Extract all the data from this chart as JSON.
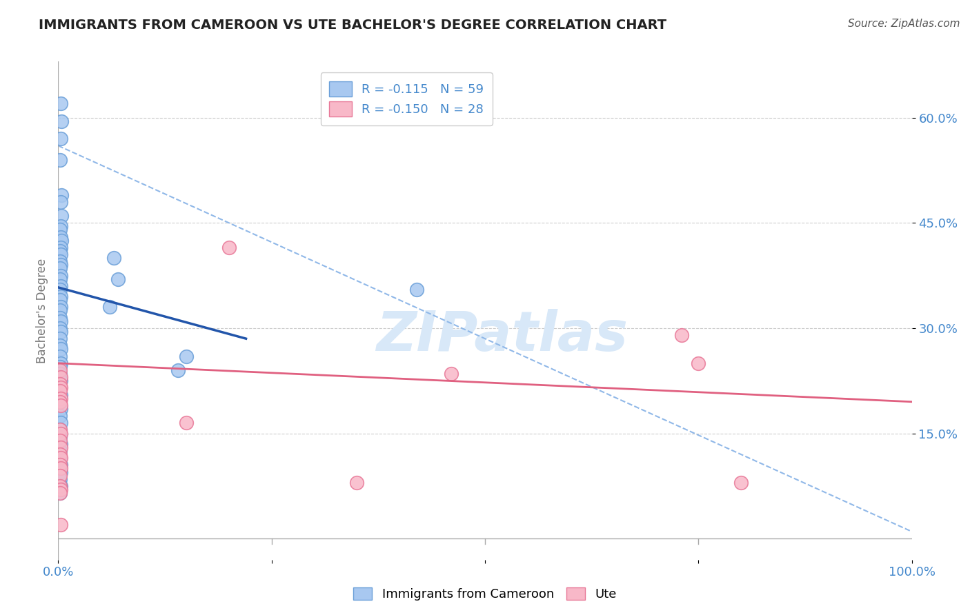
{
  "title": "IMMIGRANTS FROM CAMEROON VS UTE BACHELOR'S DEGREE CORRELATION CHART",
  "source": "Source: ZipAtlas.com",
  "ylabel": "Bachelor's Degree",
  "xlim": [
    0.0,
    1.0
  ],
  "ylim": [
    -0.03,
    0.68
  ],
  "yticks": [
    0.15,
    0.3,
    0.45,
    0.6
  ],
  "ytick_labels": [
    "15.0%",
    "30.0%",
    "45.0%",
    "60.0%"
  ],
  "blue_color": "#A8C8F0",
  "blue_edge_color": "#6A9FD8",
  "pink_color": "#F8B8C8",
  "pink_edge_color": "#E87898",
  "blue_line_color": "#2255AA",
  "pink_line_color": "#E06080",
  "dashed_line_color": "#90B8E8",
  "watermark_color": "#D8E8F8",
  "legend_R_blue": "R = -0.115",
  "legend_N_blue": "N = 59",
  "legend_R_pink": "R = -0.150",
  "legend_N_pink": "N = 28",
  "legend_text_color": "#4488CC",
  "title_color": "#222222",
  "source_color": "#555555",
  "axis_color": "#AAAAAA",
  "grid_color": "#CCCCCC",
  "blue_scatter_x": [
    0.003,
    0.004,
    0.003,
    0.002,
    0.004,
    0.003,
    0.004,
    0.003,
    0.002,
    0.003,
    0.004,
    0.003,
    0.002,
    0.003,
    0.002,
    0.003,
    0.002,
    0.003,
    0.002,
    0.003,
    0.002,
    0.003,
    0.002,
    0.003,
    0.002,
    0.002,
    0.003,
    0.002,
    0.003,
    0.002,
    0.002,
    0.003,
    0.002,
    0.003,
    0.002,
    0.002,
    0.003,
    0.002,
    0.003,
    0.002,
    0.003,
    0.002,
    0.003,
    0.002,
    0.002,
    0.003,
    0.002,
    0.002,
    0.06,
    0.065,
    0.07,
    0.14,
    0.15,
    0.42,
    0.003,
    0.003,
    0.002,
    0.003,
    0.002
  ],
  "blue_scatter_y": [
    0.62,
    0.595,
    0.57,
    0.54,
    0.49,
    0.48,
    0.46,
    0.445,
    0.44,
    0.43,
    0.425,
    0.415,
    0.41,
    0.405,
    0.395,
    0.39,
    0.385,
    0.375,
    0.37,
    0.36,
    0.355,
    0.345,
    0.34,
    0.33,
    0.325,
    0.315,
    0.31,
    0.3,
    0.295,
    0.285,
    0.275,
    0.27,
    0.26,
    0.25,
    0.245,
    0.235,
    0.225,
    0.215,
    0.205,
    0.195,
    0.185,
    0.175,
    0.165,
    0.155,
    0.145,
    0.135,
    0.125,
    0.115,
    0.33,
    0.4,
    0.37,
    0.24,
    0.26,
    0.355,
    0.105,
    0.095,
    0.085,
    0.075,
    0.065
  ],
  "pink_scatter_x": [
    0.002,
    0.003,
    0.002,
    0.003,
    0.002,
    0.003,
    0.002,
    0.003,
    0.002,
    0.003,
    0.002,
    0.003,
    0.002,
    0.003,
    0.002,
    0.003,
    0.002,
    0.2,
    0.35,
    0.73,
    0.8,
    0.002,
    0.46,
    0.75,
    0.15,
    0.003,
    0.002,
    0.003
  ],
  "pink_scatter_y": [
    0.24,
    0.23,
    0.22,
    0.215,
    0.21,
    0.2,
    0.195,
    0.19,
    0.155,
    0.15,
    0.14,
    0.13,
    0.12,
    0.115,
    0.105,
    0.1,
    0.09,
    0.415,
    0.08,
    0.29,
    0.08,
    0.075,
    0.235,
    0.25,
    0.165,
    0.07,
    0.065,
    0.02
  ],
  "blue_line_x": [
    0.0,
    0.22
  ],
  "blue_line_y": [
    0.358,
    0.285
  ],
  "pink_line_x": [
    0.0,
    1.0
  ],
  "pink_line_y": [
    0.25,
    0.195
  ],
  "dashed_line_x": [
    0.0,
    1.0
  ],
  "dashed_line_y": [
    0.56,
    0.01
  ]
}
